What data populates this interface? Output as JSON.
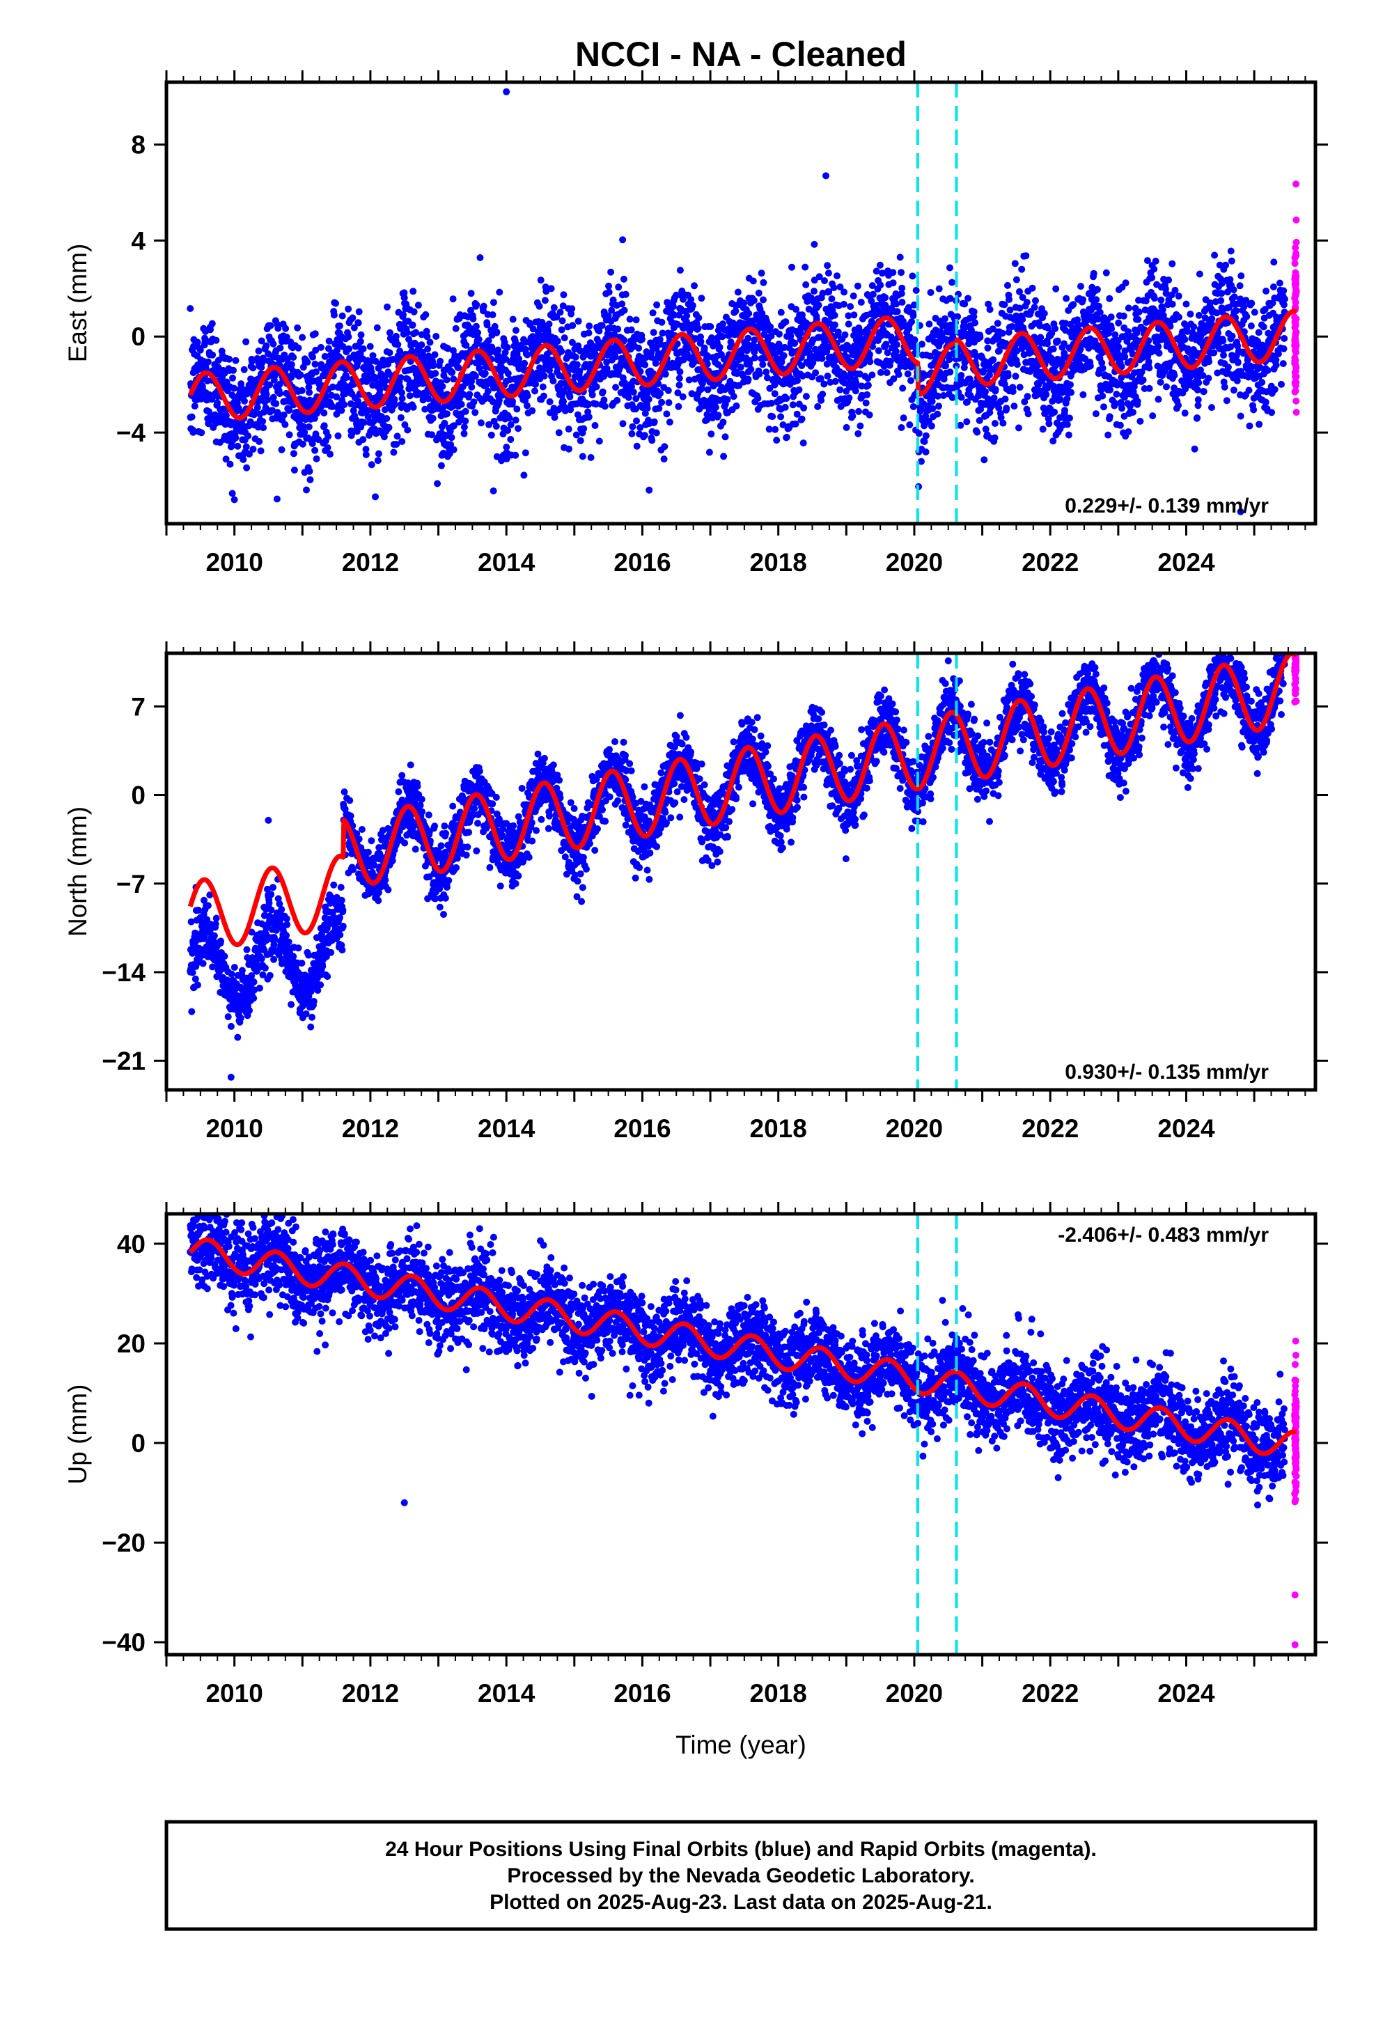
{
  "title": "NCCI  - NA - Cleaned",
  "xlabel": "Time (year)",
  "footer": {
    "line1": "24 Hour Positions Using Final Orbits (blue) and Rapid Orbits (magenta).",
    "line2": "Processed by the Nevada Geodetic Laboratory.",
    "line3": "Plotted on 2025-Aug-23. Last data on 2025-Aug-21."
  },
  "colors": {
    "final_orbits": "#0000ff",
    "rapid_orbits": "#ff00ff",
    "model": "#ff0000",
    "equipment_change": "#00e5ee"
  },
  "chart_data": [
    {
      "type": "scatter",
      "name": "east",
      "ylabel": "East (mm)",
      "rate_label": "0.229+/- 0.139 mm/yr",
      "xlim": [
        2009.0,
        2025.9
      ],
      "ylim": [
        -7.8,
        10.6
      ],
      "xticks": [
        2010,
        2012,
        2014,
        2016,
        2018,
        2020,
        2022,
        2024
      ],
      "xtick_labels": [
        "2010",
        "2012",
        "2014",
        "2016",
        "2018",
        "2020",
        "2022",
        "2024"
      ],
      "yticks": [
        -4,
        0,
        4,
        8
      ],
      "ytick_labels": [
        "−4",
        "0",
        "4",
        "8"
      ],
      "vlines": [
        2020.05,
        2020.62
      ],
      "data_start": 2009.35,
      "data_end": 2025.62,
      "rapid_start": 2025.45,
      "model": {
        "offset": -0.7,
        "rate": 0.229,
        "seasonal_amp": 1.0,
        "peak_year_frac": 0.58,
        "steps": [
          {
            "at": 2020.05,
            "delta": -1.3
          },
          {
            "at": 2020.62,
            "delta": 0.2
          }
        ]
      },
      "scatter_sigma": 1.3,
      "outliers": [
        [
          2014.0,
          10.2
        ],
        [
          2016.1,
          -6.4
        ],
        [
          2010.0,
          -6.8
        ],
        [
          2018.7,
          6.7
        ],
        [
          2024.8,
          -7.3
        ]
      ],
      "grid": false
    },
    {
      "type": "scatter",
      "name": "north",
      "ylabel": "North (mm)",
      "rate_label": "0.930+/- 0.135 mm/yr",
      "xlim": [
        2009.0,
        2025.9
      ],
      "ylim": [
        -23.3,
        11.2
      ],
      "xticks": [
        2010,
        2012,
        2014,
        2016,
        2018,
        2020,
        2022,
        2024
      ],
      "xtick_labels": [
        "2010",
        "2012",
        "2014",
        "2016",
        "2018",
        "2020",
        "2022",
        "2024"
      ],
      "yticks": [
        -21,
        -14,
        -7,
        0,
        7
      ],
      "ytick_labels": [
        "−21",
        "−14",
        "−7",
        "0",
        "7"
      ],
      "vlines": [
        2020.05,
        2020.62
      ],
      "data_start": 2009.35,
      "data_end": 2025.62,
      "rapid_start": 2025.45,
      "model": {
        "offset": -2.1,
        "rate": 0.93,
        "seasonal_amp": 2.8,
        "peak_year_frac": 0.55,
        "steps": [
          {
            "at": 2011.6,
            "delta": 3.0
          }
        ]
      },
      "early_data_offset": {
        "until": 2011.6,
        "delta": -4.5
      },
      "scatter_sigma": 1.3,
      "outliers": [
        [
          2009.95,
          -22.3
        ],
        [
          2010.5,
          -2.0
        ],
        [
          2020.5,
          10.6
        ]
      ],
      "grid": false
    },
    {
      "type": "scatter",
      "name": "up",
      "ylabel": "Up (mm)",
      "rate_label": "-2.406+/- 0.483 mm/yr",
      "xlim": [
        2009.0,
        2025.9
      ],
      "ylim": [
        -42.5,
        46.0
      ],
      "xticks": [
        2010,
        2012,
        2014,
        2016,
        2018,
        2020,
        2022,
        2024
      ],
      "xtick_labels": [
        "2010",
        "2012",
        "2014",
        "2016",
        "2018",
        "2020",
        "2022",
        "2024"
      ],
      "yticks": [
        -40,
        -20,
        0,
        20,
        40
      ],
      "ytick_labels": [
        "−40",
        "−20",
        "0",
        "20",
        "40"
      ],
      "vlines": [
        2020.05,
        2020.62
      ],
      "data_start": 2009.35,
      "data_end": 2025.62,
      "rapid_start": 2025.45,
      "model": {
        "offset": 19.0,
        "rate": -2.406,
        "seasonal_amp": 2.8,
        "peak_year_frac": 0.62,
        "steps": []
      },
      "scatter_sigma": 4.2,
      "outliers": [
        [
          2009.8,
          44.0
        ],
        [
          2012.5,
          -12.0
        ],
        [
          2024.7,
          11.5
        ],
        [
          2025.6,
          -40.5
        ],
        [
          2025.6,
          -30.5
        ]
      ],
      "grid": false
    }
  ]
}
